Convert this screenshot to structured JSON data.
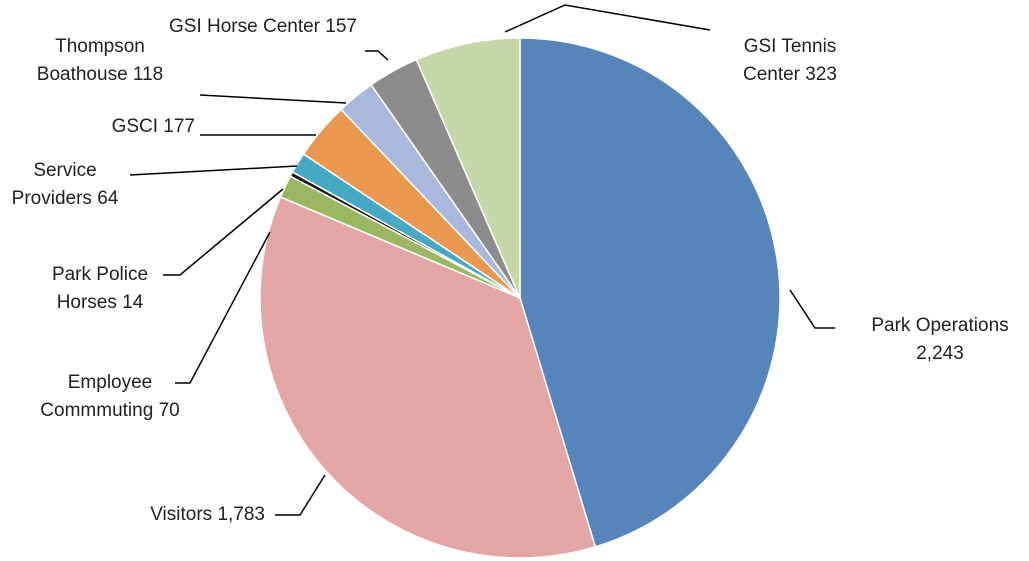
{
  "chart_data": {
    "type": "pie",
    "categories": [
      "Park Operations",
      "Visitors",
      "Employee Commmuting",
      "Park Police Horses",
      "Service Providers",
      "GSCI",
      "Thompson Boathouse",
      "GSI Horse Center",
      "GSI Tennis Center"
    ],
    "values": [
      2243,
      1783,
      70,
      14,
      64,
      177,
      118,
      157,
      323
    ],
    "value_labels": [
      "2,243",
      "1,783",
      "70",
      "14",
      "64",
      "177",
      "118",
      "157",
      "323"
    ],
    "colors": [
      "#5585bb",
      "#e3a6a5",
      "#9bb762",
      "#1a1a1a",
      "#46a9c4",
      "#ea9850",
      "#a9b9de",
      "#8c8c8c",
      "#c6d7a8"
    ]
  }
}
